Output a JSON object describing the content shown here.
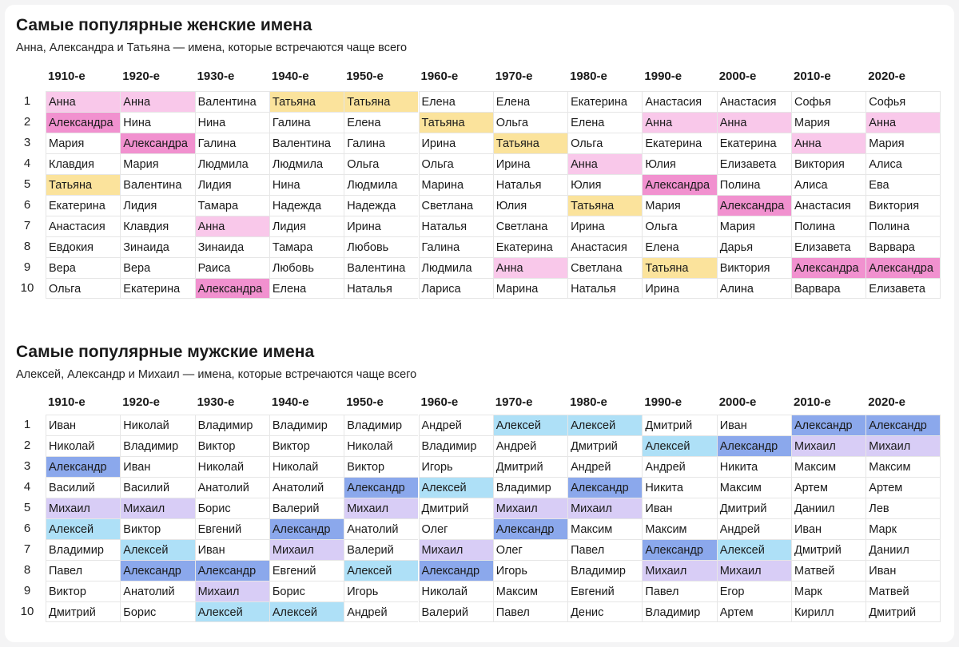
{
  "female": {
    "title": "Самые популярные женские имена",
    "subtitle": "Анна, Александра и Татьяна — имена, которые встречаются чаще всего",
    "decades": [
      "1910-е",
      "1920-е",
      "1930-е",
      "1940-е",
      "1950-е",
      "1960-е",
      "1970-е",
      "1980-е",
      "1990-е",
      "2000-е",
      "2010-е",
      "2020-е"
    ],
    "ranks": [
      "1",
      "2",
      "3",
      "4",
      "5",
      "6",
      "7",
      "8",
      "9",
      "10"
    ],
    "rows": [
      [
        "Анна",
        "Анна",
        "Валентина",
        "Татьяна",
        "Татьяна",
        "Елена",
        "Елена",
        "Екатерина",
        "Анастасия",
        "Анастасия",
        "Софья",
        "Софья"
      ],
      [
        "Александра",
        "Нина",
        "Нина",
        "Галина",
        "Елена",
        "Татьяна",
        "Ольга",
        "Елена",
        "Анна",
        "Анна",
        "Мария",
        "Анна"
      ],
      [
        "Мария",
        "Александра",
        "Галина",
        "Валентина",
        "Галина",
        "Ирина",
        "Татьяна",
        "Ольга",
        "Екатерина",
        "Екатерина",
        "Анна",
        "Мария"
      ],
      [
        "Клавдия",
        "Мария",
        "Людмила",
        "Людмила",
        "Ольга",
        "Ольга",
        "Ирина",
        "Анна",
        "Юлия",
        "Елизавета",
        "Виктория",
        "Алиса"
      ],
      [
        "Татьяна",
        "Валентина",
        "Лидия",
        "Нина",
        "Людмила",
        "Марина",
        "Наталья",
        "Юлия",
        "Александра",
        "Полина",
        "Алиса",
        "Ева"
      ],
      [
        "Екатерина",
        "Лидия",
        "Тамара",
        "Надежда",
        "Надежда",
        "Светлана",
        "Юлия",
        "Татьяна",
        "Мария",
        "Александра",
        "Анастасия",
        "Виктория"
      ],
      [
        "Анастасия",
        "Клавдия",
        "Анна",
        "Лидия",
        "Ирина",
        "Наталья",
        "Светлана",
        "Ирина",
        "Ольга",
        "Мария",
        "Полина",
        "Полина"
      ],
      [
        "Евдокия",
        "Зинаида",
        "Зинаида",
        "Тамара",
        "Любовь",
        "Галина",
        "Екатерина",
        "Анастасия",
        "Елена",
        "Дарья",
        "Елизавета",
        "Варвара"
      ],
      [
        "Вера",
        "Вера",
        "Раиса",
        "Любовь",
        "Валентина",
        "Людмила",
        "Анна",
        "Светлана",
        "Татьяна",
        "Виктория",
        "Александра",
        "Александра"
      ],
      [
        "Ольга",
        "Екатерина",
        "Александра",
        "Елена",
        "Наталья",
        "Лариса",
        "Марина",
        "Наталья",
        "Ирина",
        "Алина",
        "Варвара",
        "Елизавета"
      ]
    ],
    "highlights": {
      "Анна": "#f9c8ea",
      "Александра": "#f191cf",
      "Татьяна": "#fbe39c"
    }
  },
  "male": {
    "title": "Самые популярные мужские имена",
    "subtitle": "Алексей, Александр и Михаил — имена, которые встречаются чаще всего",
    "decades": [
      "1910-е",
      "1920-е",
      "1930-е",
      "1940-е",
      "1950-е",
      "1960-е",
      "1970-е",
      "1980-е",
      "1990-е",
      "2000-е",
      "2010-е",
      "2020-е"
    ],
    "ranks": [
      "1",
      "2",
      "3",
      "4",
      "5",
      "6",
      "7",
      "8",
      "9",
      "10"
    ],
    "rows": [
      [
        "Иван",
        "Николай",
        "Владимир",
        "Владимир",
        "Владимир",
        "Андрей",
        "Алексей",
        "Алексей",
        "Дмитрий",
        "Иван",
        "Александр",
        "Александр"
      ],
      [
        "Николай",
        "Владимир",
        "Виктор",
        "Виктор",
        "Николай",
        "Владимир",
        "Андрей",
        "Дмитрий",
        "Алексей",
        "Александр",
        "Михаил",
        "Михаил"
      ],
      [
        "Александр",
        "Иван",
        "Николай",
        "Николай",
        "Виктор",
        "Игорь",
        "Дмитрий",
        "Андрей",
        "Андрей",
        "Никита",
        "Максим",
        "Максим"
      ],
      [
        "Василий",
        "Василий",
        "Анатолий",
        "Анатолий",
        "Александр",
        "Алексей",
        "Владимир",
        "Александр",
        "Никита",
        "Максим",
        "Артем",
        "Артем"
      ],
      [
        "Михаил",
        "Михаил",
        "Борис",
        "Валерий",
        "Михаил",
        "Дмитрий",
        "Михаил",
        "Михаил",
        "Иван",
        "Дмитрий",
        "Даниил",
        "Лев"
      ],
      [
        "Алексей",
        "Виктор",
        "Евгений",
        "Александр",
        "Анатолий",
        "Олег",
        "Александр",
        "Максим",
        "Максим",
        "Андрей",
        "Иван",
        "Марк"
      ],
      [
        "Владимир",
        "Алексей",
        "Иван",
        "Михаил",
        "Валерий",
        "Михаил",
        "Олег",
        "Павел",
        "Александр",
        "Алексей",
        "Дмитрий",
        "Даниил"
      ],
      [
        "Павел",
        "Александр",
        "Александр",
        "Евгений",
        "Алексей",
        "Александр",
        "Игорь",
        "Владимир",
        "Михаил",
        "Михаил",
        "Матвей",
        "Иван"
      ],
      [
        "Виктор",
        "Анатолий",
        "Михаил",
        "Борис",
        "Игорь",
        "Николай",
        "Максим",
        "Евгений",
        "Павел",
        "Егор",
        "Марк",
        "Матвей"
      ],
      [
        "Дмитрий",
        "Борис",
        "Алексей",
        "Алексей",
        "Андрей",
        "Валерий",
        "Павел",
        "Денис",
        "Владимир",
        "Артем",
        "Кирилл",
        "Дмитрий"
      ]
    ],
    "highlights": {
      "Алексей": "#aee0f7",
      "Александр": "#8ba8ec",
      "Михаил": "#d8cdf6"
    }
  }
}
